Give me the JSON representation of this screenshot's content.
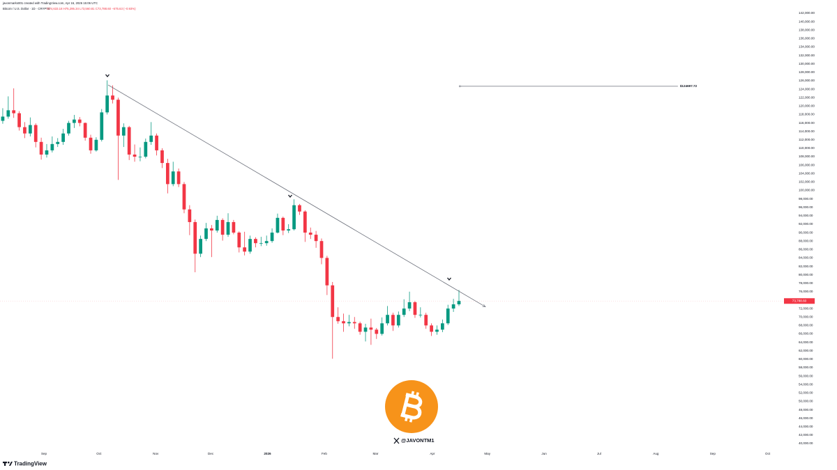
{
  "header": {
    "author_line": "javonmarks001 created with TradingView.com, Apr 16, 2026 15:06 UTC",
    "symbol": "Bitcoin / U.S. Dollar · 1D · CRYPTO",
    "ohlc_line": "O74,633.18 H75,295.34 L73,560.81 C73,788.60 −675.63 (−0.93%)"
  },
  "chart_data": {
    "type": "candlestick",
    "up_color": "#089981",
    "down_color": "#f23645",
    "x": [
      "2025-08-08",
      "2025-08-11",
      "2025-08-14",
      "2025-08-17",
      "2025-08-20",
      "2025-08-23",
      "2025-08-26",
      "2025-08-29",
      "2025-09-01",
      "2025-09-04",
      "2025-09-07",
      "2025-09-10",
      "2025-09-13",
      "2025-09-16",
      "2025-09-19",
      "2025-09-22",
      "2025-09-25",
      "2025-09-28",
      "2025-10-01",
      "2025-10-04",
      "2025-10-07",
      "2025-10-10",
      "2025-10-13",
      "2025-10-16",
      "2025-10-19",
      "2025-10-22",
      "2025-10-25",
      "2025-10-28",
      "2025-10-31",
      "2025-11-03",
      "2025-11-06",
      "2025-11-09",
      "2025-11-12",
      "2025-11-15",
      "2025-11-18",
      "2025-11-21",
      "2025-11-24",
      "2025-11-27",
      "2025-11-30",
      "2025-12-03",
      "2025-12-06",
      "2025-12-09",
      "2025-12-12",
      "2025-12-15",
      "2025-12-18",
      "2025-12-21",
      "2025-12-24",
      "2025-12-27",
      "2025-12-30",
      "2026-01-02",
      "2026-01-05",
      "2026-01-08",
      "2026-01-11",
      "2026-01-14",
      "2026-01-17",
      "2026-01-20",
      "2026-01-23",
      "2026-01-26",
      "2026-01-29",
      "2026-02-01",
      "2026-02-04",
      "2026-02-07",
      "2026-02-10",
      "2026-02-13",
      "2026-02-16",
      "2026-02-19",
      "2026-02-22",
      "2026-02-25",
      "2026-02-28",
      "2026-03-03",
      "2026-03-06",
      "2026-03-09",
      "2026-03-12",
      "2026-03-15",
      "2026-03-18",
      "2026-03-21",
      "2026-03-24",
      "2026-03-27",
      "2026-03-30",
      "2026-04-02",
      "2026-04-05",
      "2026-04-08",
      "2026-04-11",
      "2026-04-14"
    ],
    "open": [
      116500,
      117500,
      119000,
      118300,
      115000,
      113500,
      115500,
      111500,
      108500,
      109500,
      111000,
      111500,
      113500,
      116000,
      116800,
      116000,
      112500,
      109500,
      112000,
      118500,
      122500,
      121500,
      113000,
      115000,
      108500,
      108000,
      108000,
      111500,
      113000,
      109500,
      106500,
      101500,
      104500,
      101500,
      95500,
      92500,
      85000,
      88500,
      91000,
      90500,
      93000,
      89500,
      92500,
      90000,
      86500,
      85500,
      88500,
      87500,
      87500,
      88000,
      90000,
      93500,
      90500,
      90800,
      96500,
      95000,
      90000,
      89500,
      88000,
      84000,
      77500,
      70000,
      69000,
      68500,
      68800,
      68500,
      66500,
      67500,
      67000,
      66000,
      68500,
      70500,
      68000,
      70500,
      72000,
      73500,
      70500,
      70500,
      68000,
      66500,
      67000,
      68500,
      72000,
      73000
    ],
    "high": [
      119500,
      122300,
      124200,
      118800,
      116200,
      117300,
      115900,
      112500,
      111000,
      112800,
      112400,
      114600,
      116500,
      117900,
      117400,
      116100,
      113200,
      112600,
      119300,
      126100,
      124900,
      122000,
      115900,
      115300,
      110900,
      110200,
      112300,
      116200,
      113500,
      110000,
      107500,
      106800,
      105200,
      102000,
      96500,
      93100,
      89300,
      92300,
      91800,
      94000,
      93400,
      94600,
      93000,
      90300,
      90200,
      89300,
      88900,
      89000,
      89300,
      91000,
      94500,
      93800,
      92000,
      97900,
      96800,
      95300,
      91200,
      90400,
      88600,
      84500,
      78300,
      72300,
      70800,
      70500,
      70000,
      68900,
      68400,
      69600,
      67400,
      69900,
      72600,
      71000,
      71300,
      74200,
      76000,
      73800,
      72300,
      71000,
      68500,
      68000,
      69400,
      72900,
      74300,
      76400
    ],
    "low": [
      115800,
      117000,
      117200,
      114200,
      112400,
      112800,
      110200,
      107300,
      107800,
      109000,
      110300,
      110800,
      113000,
      114800,
      115200,
      111800,
      108700,
      109200,
      111600,
      118000,
      120600,
      102500,
      110300,
      107200,
      106800,
      106900,
      107600,
      110800,
      108300,
      105300,
      99300,
      101000,
      100800,
      94600,
      89400,
      80600,
      84200,
      88000,
      84200,
      90000,
      88100,
      89000,
      89600,
      85300,
      84600,
      85000,
      86500,
      86800,
      86900,
      87600,
      89800,
      89400,
      89900,
      90500,
      94200,
      87800,
      88500,
      86400,
      82500,
      75200,
      60100,
      68400,
      66500,
      67800,
      67200,
      65800,
      64200,
      63400,
      64800,
      65600,
      68000,
      66700,
      67500,
      70000,
      71400,
      69800,
      69900,
      67200,
      65500,
      65800,
      66400,
      68100,
      71200,
      72600
    ],
    "close": [
      117500,
      119000,
      118300,
      115000,
      113500,
      115500,
      111500,
      108500,
      109500,
      111000,
      111500,
      113500,
      116000,
      116800,
      116000,
      112500,
      109500,
      112000,
      118500,
      122500,
      121500,
      113000,
      115000,
      108500,
      108000,
      108000,
      111500,
      113000,
      109500,
      106500,
      101500,
      104500,
      101500,
      95500,
      92500,
      85000,
      88500,
      91000,
      90500,
      93000,
      89500,
      92500,
      90000,
      86500,
      85500,
      88500,
      87500,
      87500,
      88000,
      90000,
      93500,
      90500,
      90800,
      96500,
      95000,
      90000,
      89500,
      88000,
      84000,
      77500,
      70000,
      69000,
      68500,
      68800,
      68500,
      66500,
      67500,
      67000,
      66000,
      68500,
      70500,
      68000,
      70500,
      72000,
      73500,
      70500,
      70500,
      68000,
      66500,
      67000,
      68500,
      72000,
      73000,
      73800
    ],
    "xlim": [
      "2025-08-08",
      "2026-10-16"
    ],
    "xticks": [
      {
        "value": "2025-09-01",
        "label": "Sep"
      },
      {
        "value": "2025-10-01",
        "label": "Oct"
      },
      {
        "value": "2025-11-01",
        "label": "Nov"
      },
      {
        "value": "2025-12-01",
        "label": "Dec"
      },
      {
        "value": "2026-01-01",
        "label": "2026"
      },
      {
        "value": "2026-02-01",
        "label": "Feb"
      },
      {
        "value": "2026-03-01",
        "label": "Mar"
      },
      {
        "value": "2026-04-01",
        "label": "Apr"
      },
      {
        "value": "2026-05-01",
        "label": "May"
      },
      {
        "value": "2026-06-01",
        "label": "Jun"
      },
      {
        "value": "2026-07-01",
        "label": "Jul"
      },
      {
        "value": "2026-08-01",
        "label": "Aug"
      },
      {
        "value": "2026-09-01",
        "label": "Sep"
      },
      {
        "value": "2026-10-01",
        "label": "Oct"
      }
    ],
    "ylim": [
      38680,
      145140
    ],
    "yticks": [
      {
        "value": 142000,
        "label": "142,000.00"
      },
      {
        "value": 140000,
        "label": "140,000.00"
      },
      {
        "value": 138000,
        "label": "138,000.00"
      },
      {
        "value": 136000,
        "label": "136,000.00"
      },
      {
        "value": 134000,
        "label": "134,000.00"
      },
      {
        "value": 132000,
        "label": "132,000.00"
      },
      {
        "value": 130000,
        "label": "130,000.00"
      },
      {
        "value": 128000,
        "label": "128,000.00"
      },
      {
        "value": 126000,
        "label": "126,000.00"
      },
      {
        "value": 124000,
        "label": "124,000.00"
      },
      {
        "value": 122000,
        "label": "122,000.00"
      },
      {
        "value": 120000,
        "label": "120,000.00"
      },
      {
        "value": 118000,
        "label": "118,000.00"
      },
      {
        "value": 116000,
        "label": "116,000.00"
      },
      {
        "value": 114000,
        "label": "114,000.00"
      },
      {
        "value": 112000,
        "label": "112,000.00"
      },
      {
        "value": 110000,
        "label": "110,000.00"
      },
      {
        "value": 108000,
        "label": "108,000.00"
      },
      {
        "value": 106000,
        "label": "106,000.00"
      },
      {
        "value": 104000,
        "label": "104,000.00"
      },
      {
        "value": 102000,
        "label": "102,000.00"
      },
      {
        "value": 100000,
        "label": "100,000.00"
      },
      {
        "value": 98000,
        "label": "98,000.00"
      },
      {
        "value": 96000,
        "label": "96,000.00"
      },
      {
        "value": 94000,
        "label": "94,000.00"
      },
      {
        "value": 92000,
        "label": "92,000.00"
      },
      {
        "value": 90000,
        "label": "90,000.00"
      },
      {
        "value": 88000,
        "label": "88,000.00"
      },
      {
        "value": 86000,
        "label": "86,000.00"
      },
      {
        "value": 84000,
        "label": "84,000.00"
      },
      {
        "value": 82000,
        "label": "82,000.00"
      },
      {
        "value": 80000,
        "label": "80,000.00"
      },
      {
        "value": 78000,
        "label": "78,000.00"
      },
      {
        "value": 76000,
        "label": "76,000.00"
      },
      {
        "value": 74000,
        "label": "74,000.00"
      },
      {
        "value": 72000,
        "label": "72,000.00"
      },
      {
        "value": 70000,
        "label": "70,000.00"
      },
      {
        "value": 68000,
        "label": "68,000.00"
      },
      {
        "value": 66000,
        "label": "66,000.00"
      },
      {
        "value": 64000,
        "label": "64,000.00"
      },
      {
        "value": 62000,
        "label": "62,000.00"
      },
      {
        "value": 60000,
        "label": "60,000.00"
      },
      {
        "value": 58000,
        "label": "58,000.00"
      },
      {
        "value": 56000,
        "label": "56,000.00"
      },
      {
        "value": 54000,
        "label": "54,000.00"
      },
      {
        "value": 52000,
        "label": "52,000.00"
      },
      {
        "value": 50000,
        "label": "50,000.00"
      },
      {
        "value": 48000,
        "label": "48,000.00"
      },
      {
        "value": 46000,
        "label": "46,000.00"
      },
      {
        "value": 44000,
        "label": "44,000.00"
      },
      {
        "value": 42000,
        "label": "42,000.00"
      },
      {
        "value": 40000,
        "label": "40,000.00"
      }
    ],
    "grid": false,
    "trendline": {
      "x": [
        "2025-10-06",
        "2026-04-30"
      ],
      "y": [
        125000,
        72400
      ],
      "color": "#6b6f7a"
    },
    "hline": {
      "value": 124697.72,
      "label": "$124697.72",
      "x": [
        "2026-04-16",
        "2026-08-13"
      ],
      "color": "#6b6f7a"
    },
    "price_tag": {
      "value": 73788.6,
      "label": "73,788.60",
      "color": "#f23645"
    }
  },
  "watermark": {
    "handle": "@JAVONTM1"
  },
  "footer": {
    "brand": "TradingView"
  }
}
